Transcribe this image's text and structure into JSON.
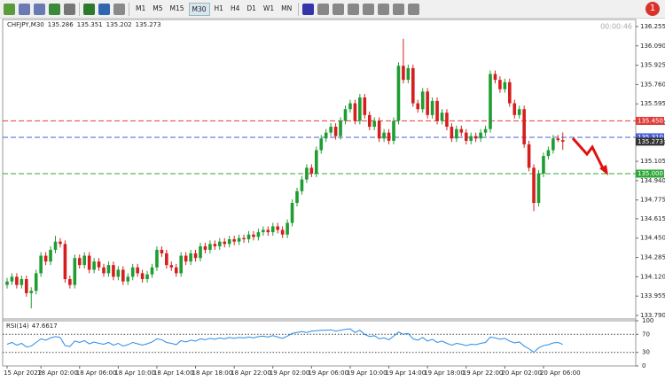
{
  "toolbar": {
    "timeframes": [
      "M1",
      "M5",
      "M15",
      "M30",
      "H1",
      "H4",
      "D1",
      "W1",
      "MN"
    ],
    "badge": "1"
  },
  "chart_data": [
    {
      "type": "candlestick",
      "symbol": "CHFJPY,M30",
      "timer": "00:00:46",
      "up_color": "#1f9d32",
      "down_color": "#d51f1f",
      "categories": [
        "15 Apr 2022",
        null,
        null,
        null,
        null,
        null,
        null,
        "18 Apr 02:00",
        null,
        null,
        null,
        null,
        null,
        null,
        null,
        "18 Apr 06:00",
        null,
        null,
        null,
        null,
        null,
        null,
        null,
        "18 Apr 10:00",
        null,
        null,
        null,
        null,
        null,
        null,
        null,
        "18 Apr 14:00",
        null,
        null,
        null,
        null,
        null,
        null,
        null,
        "18 Apr 18:00",
        null,
        null,
        null,
        null,
        null,
        null,
        null,
        "18 Apr 22:00",
        null,
        null,
        null,
        null,
        null,
        null,
        null,
        "19 Apr 02:00",
        null,
        null,
        null,
        null,
        null,
        null,
        null,
        "19 Apr 06:00",
        null,
        null,
        null,
        null,
        null,
        null,
        null,
        "19 Apr 10:00",
        null,
        null,
        null,
        null,
        null,
        null,
        null,
        "19 Apr 14:00",
        null,
        null,
        null,
        null,
        null,
        null,
        null,
        "19 Apr 18:00",
        null,
        null,
        null,
        null,
        null,
        null,
        null,
        "19 Apr 22:00",
        null,
        null,
        null,
        null,
        null,
        null,
        null,
        "20 Apr 02:00",
        null,
        null,
        null,
        null,
        null,
        null,
        null,
        "20 Apr 06:00",
        null,
        null,
        null,
        null
      ],
      "open": [
        134.05,
        134.08,
        134.12,
        134.05,
        134.1,
        133.98,
        134.0,
        134.15,
        134.3,
        134.25,
        134.35,
        134.42,
        134.4,
        134.1,
        134.05,
        134.28,
        134.22,
        134.3,
        134.18,
        134.25,
        134.2,
        134.15,
        134.22,
        134.12,
        134.18,
        134.08,
        134.12,
        134.2,
        134.15,
        134.1,
        134.14,
        134.2,
        134.35,
        134.32,
        134.22,
        134.2,
        134.15,
        134.3,
        134.25,
        134.32,
        134.28,
        134.38,
        134.35,
        134.4,
        134.38,
        134.42,
        134.4,
        134.44,
        134.42,
        134.45,
        134.44,
        134.48,
        134.46,
        134.5,
        134.52,
        134.5,
        134.55,
        134.52,
        134.48,
        134.58,
        134.75,
        134.85,
        134.95,
        135.05,
        135.0,
        135.2,
        135.3,
        135.35,
        135.4,
        135.32,
        135.45,
        135.55,
        135.6,
        135.45,
        135.65,
        135.5,
        135.4,
        135.45,
        135.3,
        135.35,
        135.28,
        135.45,
        135.92,
        135.8,
        135.9,
        135.6,
        135.55,
        135.7,
        135.5,
        135.62,
        135.45,
        135.52,
        135.4,
        135.3,
        135.38,
        135.35,
        135.28,
        135.32,
        135.3,
        135.35,
        135.38,
        135.85,
        135.8,
        135.72,
        135.78,
        135.6,
        135.5,
        135.55,
        135.25,
        135.05,
        134.75,
        135.0,
        135.15,
        135.2,
        135.3,
        135.286
      ],
      "high": [
        134.11,
        134.15,
        134.15,
        134.13,
        134.13,
        134.03,
        134.18,
        134.33,
        134.33,
        134.38,
        134.47,
        134.45,
        134.43,
        134.13,
        134.31,
        134.31,
        134.33,
        134.33,
        134.28,
        134.28,
        134.23,
        134.25,
        134.25,
        134.21,
        134.21,
        134.15,
        134.23,
        134.23,
        134.18,
        134.17,
        134.23,
        134.38,
        134.38,
        134.35,
        134.25,
        134.23,
        134.33,
        134.33,
        134.35,
        134.35,
        134.41,
        134.41,
        134.43,
        134.43,
        134.45,
        134.45,
        134.47,
        134.47,
        134.48,
        134.48,
        134.51,
        134.51,
        134.53,
        134.55,
        134.55,
        134.58,
        134.58,
        134.55,
        134.61,
        134.78,
        134.88,
        134.98,
        135.08,
        135.08,
        135.23,
        135.33,
        135.38,
        135.43,
        135.43,
        135.48,
        135.58,
        135.63,
        135.63,
        135.68,
        135.68,
        135.53,
        135.48,
        135.48,
        135.38,
        135.38,
        135.48,
        135.95,
        136.15,
        135.93,
        135.93,
        135.63,
        135.73,
        135.73,
        135.65,
        135.65,
        135.55,
        135.55,
        135.43,
        135.41,
        135.41,
        135.38,
        135.35,
        135.35,
        135.38,
        135.41,
        135.88,
        135.88,
        135.83,
        135.81,
        135.81,
        135.63,
        135.58,
        135.58,
        135.28,
        135.08,
        135.03,
        135.18,
        135.23,
        135.33,
        135.33,
        135.351
      ],
      "low": [
        134.02,
        134.05,
        134.02,
        134.02,
        133.95,
        133.85,
        133.97,
        134.12,
        134.22,
        134.22,
        134.32,
        134.37,
        134.07,
        134.02,
        134.02,
        134.19,
        134.19,
        134.15,
        134.15,
        134.17,
        134.12,
        134.12,
        134.09,
        134.09,
        134.05,
        134.05,
        134.09,
        134.12,
        134.07,
        134.07,
        134.11,
        134.17,
        134.29,
        134.19,
        134.17,
        134.12,
        134.12,
        134.22,
        134.22,
        134.25,
        134.25,
        134.32,
        134.32,
        134.35,
        134.35,
        134.37,
        134.37,
        134.39,
        134.39,
        134.41,
        134.41,
        134.43,
        134.43,
        134.47,
        134.47,
        134.47,
        134.49,
        134.45,
        134.45,
        134.55,
        134.72,
        134.82,
        134.92,
        134.97,
        134.97,
        135.17,
        135.27,
        135.32,
        135.29,
        135.29,
        135.42,
        135.52,
        135.42,
        135.42,
        135.47,
        135.37,
        135.37,
        135.27,
        135.27,
        135.25,
        135.25,
        135.42,
        135.77,
        135.77,
        135.57,
        135.52,
        135.52,
        135.47,
        135.47,
        135.42,
        135.42,
        135.37,
        135.27,
        135.27,
        135.32,
        135.25,
        135.25,
        135.27,
        135.27,
        135.32,
        135.35,
        135.77,
        135.69,
        135.69,
        135.57,
        135.47,
        135.47,
        135.22,
        135.02,
        134.68,
        134.72,
        134.97,
        135.12,
        135.17,
        135.27,
        135.202
      ],
      "close": [
        134.08,
        134.12,
        134.05,
        134.1,
        133.98,
        134.0,
        134.15,
        134.3,
        134.25,
        134.35,
        134.42,
        134.4,
        134.1,
        134.05,
        134.28,
        134.22,
        134.3,
        134.18,
        134.25,
        134.2,
        134.15,
        134.22,
        134.12,
        134.18,
        134.08,
        134.12,
        134.2,
        134.15,
        134.1,
        134.14,
        134.2,
        134.35,
        134.32,
        134.22,
        134.2,
        134.15,
        134.3,
        134.25,
        134.32,
        134.28,
        134.38,
        134.35,
        134.4,
        134.38,
        134.42,
        134.4,
        134.44,
        134.42,
        134.45,
        134.44,
        134.48,
        134.46,
        134.5,
        134.52,
        134.5,
        134.55,
        134.52,
        134.48,
        134.58,
        134.75,
        134.85,
        134.95,
        135.05,
        135.0,
        135.2,
        135.3,
        135.35,
        135.4,
        135.32,
        135.45,
        135.55,
        135.6,
        135.45,
        135.65,
        135.5,
        135.4,
        135.45,
        135.3,
        135.35,
        135.28,
        135.45,
        135.92,
        135.8,
        135.9,
        135.6,
        135.55,
        135.7,
        135.5,
        135.62,
        135.45,
        135.52,
        135.4,
        135.3,
        135.38,
        135.35,
        135.28,
        135.32,
        135.3,
        135.35,
        135.38,
        135.85,
        135.8,
        135.72,
        135.78,
        135.6,
        135.5,
        135.55,
        135.25,
        135.05,
        134.75,
        135.0,
        135.15,
        135.2,
        135.3,
        135.286,
        135.273
      ],
      "ylim": [
        133.775,
        136.315
      ],
      "yticks": [
        136.255,
        {
          "value": 136.09,
          "label": "136.090"
        },
        135.925,
        {
          "value": 135.76,
          "label": "135.760"
        },
        135.595,
        {
          "value": 135.43,
          "label": "135.430"
        },
        135.265,
        135.105,
        {
          "value": 134.94,
          "label": "134.940"
        },
        134.775,
        134.615,
        {
          "value": 134.45,
          "label": "134.450"
        },
        134.285,
        {
          "value": 134.12,
          "label": "134.120"
        },
        133.955,
        {
          "value": 133.79,
          "label": "133.790"
        }
      ],
      "hlines": [
        {
          "value": 135.45,
          "label": "135.450",
          "color": "#e03c3c"
        },
        {
          "value": 135.31,
          "label": "135.310",
          "color": "#4a5fd6"
        },
        {
          "value": 135.0,
          "label": "135.000",
          "color": "#2fa83a"
        }
      ]
    },
    {
      "type": "line",
      "label": "RSI(14)",
      "color": "#2a8be6",
      "values": [
        48,
        52,
        46,
        50,
        42,
        44,
        52,
        60,
        57,
        62,
        65,
        63,
        45,
        43,
        55,
        52,
        56,
        49,
        53,
        50,
        48,
        52,
        46,
        50,
        44,
        47,
        52,
        49,
        46,
        49,
        53,
        60,
        58,
        52,
        50,
        47,
        56,
        53,
        57,
        55,
        60,
        58,
        61,
        59,
        62,
        60,
        63,
        61,
        63,
        62,
        64,
        62,
        65,
        66,
        64,
        67,
        64,
        61,
        66,
        72,
        74,
        76,
        74,
        77,
        78,
        79,
        79,
        80,
        77,
        79,
        81,
        82,
        74,
        79,
        70,
        65,
        67,
        60,
        62,
        58,
        66,
        75,
        70,
        72,
        60,
        57,
        63,
        55,
        59,
        52,
        55,
        50,
        46,
        50,
        48,
        45,
        48,
        47,
        50,
        52,
        64,
        62,
        59,
        61,
        55,
        51,
        53,
        44,
        38,
        30,
        40,
        45,
        47,
        51,
        52,
        47.6617
      ],
      "ylim": [
        0,
        100
      ],
      "yticks": [
        100,
        70,
        30,
        0
      ],
      "levels": [
        70,
        30
      ]
    }
  ]
}
